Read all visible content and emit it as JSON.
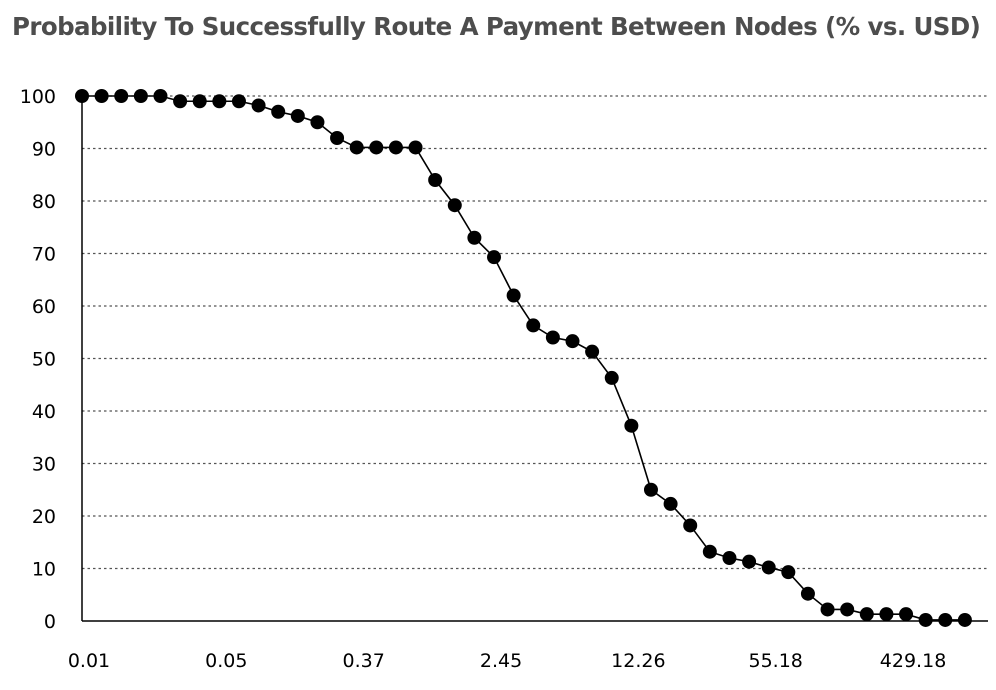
{
  "chart_data": {
    "type": "line",
    "title": "Probability To Successfully Route A Payment Between Nodes (% vs. USD)",
    "xlabel": "",
    "ylabel": "",
    "ylim": [
      0,
      100
    ],
    "yticks": [
      0,
      10,
      20,
      30,
      40,
      50,
      60,
      70,
      80,
      90,
      100
    ],
    "grid": "horizontal dotted",
    "legend": "none",
    "line_color": "#000000",
    "marker_color": "#000000",
    "x_tick_labels": [
      {
        "index": 0,
        "label": "0.01"
      },
      {
        "index": 7,
        "label": "0.05"
      },
      {
        "index": 14,
        "label": "0.37"
      },
      {
        "index": 21,
        "label": "2.45"
      },
      {
        "index": 28,
        "label": "12.26"
      },
      {
        "index": 35,
        "label": "55.18"
      },
      {
        "index": 42,
        "label": "429.18"
      }
    ],
    "series": [
      {
        "values": [
          100,
          100,
          100,
          100,
          100,
          99,
          99,
          99,
          99,
          98.2,
          97,
          96.2,
          95,
          92,
          90.2,
          90.2,
          90.2,
          90.2,
          84,
          79.2,
          73,
          69.3,
          62,
          56.3,
          54,
          53.3,
          51.3,
          46.3,
          37.2,
          25,
          22.3,
          18.2,
          13.2,
          12,
          11.3,
          10.2,
          9.3,
          5.2,
          2.2,
          2.2,
          1.3,
          1.3,
          1.3,
          0.2,
          0.2,
          0.2
        ]
      }
    ]
  }
}
